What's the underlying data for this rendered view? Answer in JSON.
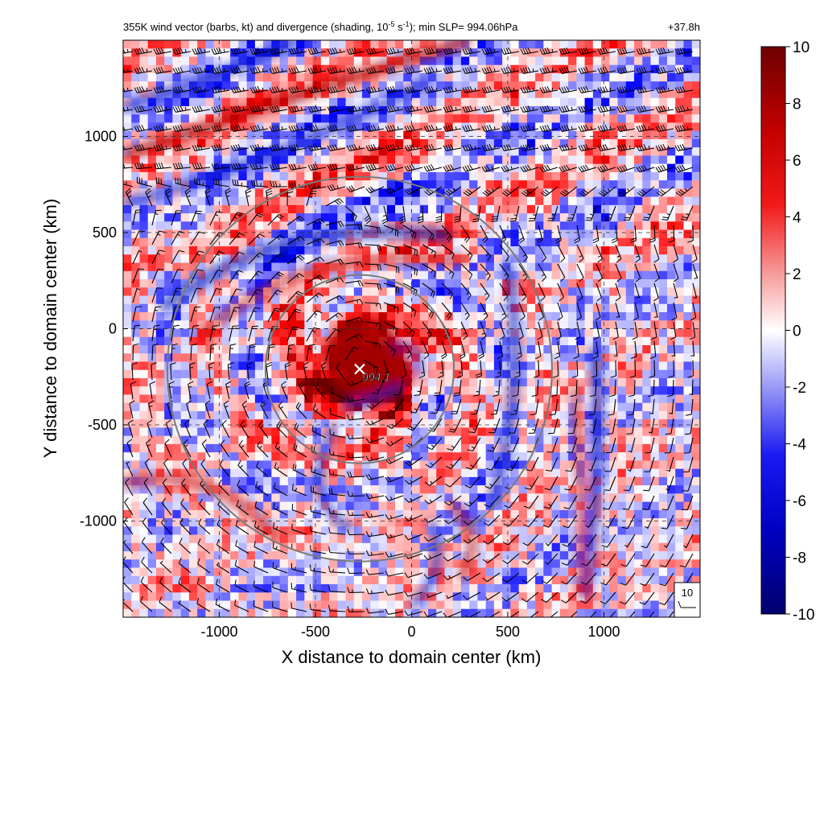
{
  "title": {
    "prefix": "355K wind vector (barbs, kt) and divergence (shading, 10",
    "exp1": "-5",
    "mid": " s",
    "exp2": "-1",
    "suffix": "); min SLP= 994.06hPa",
    "time": "+37.8h"
  },
  "center_label": "994.1",
  "reference_barb_label": "10",
  "colors": {
    "divergence_positive": "#d7191c",
    "divergence_negative": "#1a1aff",
    "range_ring": "#7a7a7a",
    "background": "#ffffff"
  },
  "chart_data": {
    "type": "heatmap",
    "title": "355K wind vector (barbs, kt) and divergence (shading, 10^-5 s^-1); min SLP= 994.06hPa",
    "valid_time": "+37.8h",
    "xlabel": "X distance to domain center (km)",
    "ylabel": "Y distance to domain center (km)",
    "xlim": [
      -1500,
      1500
    ],
    "ylim": [
      -1500,
      1500
    ],
    "xticks": [
      -1000,
      -500,
      0,
      500,
      1000
    ],
    "yticks": [
      -1000,
      -500,
      0,
      500,
      1000
    ],
    "grid": true,
    "colorbar": {
      "min": -10,
      "max": 10,
      "ticks": [
        10,
        8,
        6,
        4,
        2,
        0,
        -2,
        -4,
        -6,
        -8,
        -10
      ],
      "colormap": "blue-white-red"
    },
    "storm_center": {
      "x": -270,
      "y": -210,
      "min_slp_label": "994.1"
    },
    "range_rings": [
      {
        "center_x": -270,
        "center_y": -210,
        "radius": 490
      },
      {
        "center_x": -270,
        "center_y": -210,
        "radius": 1000
      }
    ],
    "reference_barb": "10",
    "legend_placement": "bottom-right"
  }
}
